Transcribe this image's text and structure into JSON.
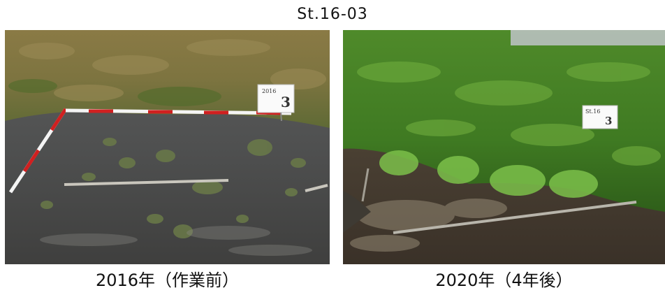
{
  "title": "St.16-03",
  "photos": [
    {
      "caption": "2016年（作業前）",
      "sign_small": "2016",
      "sign_number": "3"
    },
    {
      "caption": "2020年（4年後）",
      "sign_small": "St.16",
      "sign_number": "3"
    }
  ]
}
